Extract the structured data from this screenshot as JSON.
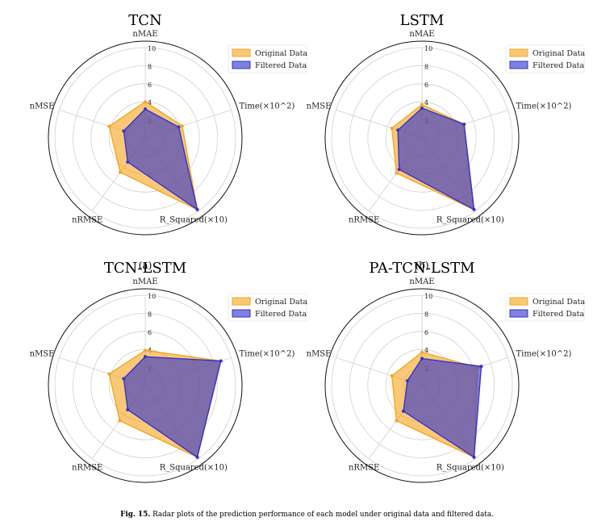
{
  "chart_data": [
    {
      "type": "radar",
      "title": "TCN",
      "label": "(a)",
      "axes": [
        "nMAE",
        "Time(×10^2)",
        "R_Squared(×10)",
        "nRMSE",
        "nMSE"
      ],
      "rticks": [
        "2",
        "4",
        "6",
        "8",
        "10"
      ],
      "rmax": 10,
      "series": [
        {
          "name": "Original Data",
          "color": "#f5a623",
          "values": [
            4.0,
            4.3,
            9.8,
            4.7,
            4.2
          ]
        },
        {
          "name": "Filtered Data",
          "color": "#3333cc",
          "values": [
            3.2,
            3.9,
            9.8,
            3.3,
            2.5
          ]
        }
      ]
    },
    {
      "type": "radar",
      "title": "LSTM",
      "label": "(b)",
      "axes": [
        "nMAE",
        "Time(×10^2)",
        "R_Squared(×10)",
        "nRMSE",
        "nMSE"
      ],
      "rticks": [
        "2",
        "4",
        "6",
        "8",
        "10"
      ],
      "rmax": 10,
      "series": [
        {
          "name": "Original Data",
          "color": "#f5a623",
          "values": [
            3.7,
            4.9,
            9.8,
            4.8,
            3.5
          ]
        },
        {
          "name": "Filtered Data",
          "color": "#3333cc",
          "values": [
            3.3,
            4.9,
            9.8,
            4.3,
            2.8
          ]
        }
      ]
    },
    {
      "type": "radar",
      "title": "TCN-LSTM",
      "label": "(c)",
      "axes": [
        "nMAE",
        "Time(×10^2)",
        "R_Squared(×10)",
        "nRMSE",
        "nMSE"
      ],
      "rticks": [
        "2",
        "4",
        "6",
        "8",
        "10"
      ],
      "rmax": 10,
      "series": [
        {
          "name": "Original Data",
          "color": "#f5a623",
          "values": [
            3.9,
            8.8,
            9.8,
            4.8,
            4.2
          ]
        },
        {
          "name": "Filtered Data",
          "color": "#3333cc",
          "values": [
            3.2,
            8.8,
            9.8,
            3.3,
            2.5
          ]
        }
      ]
    },
    {
      "type": "radar",
      "title": "PA-TCN-LSTM",
      "label": "(d)",
      "axes": [
        "nMAE",
        "Time(×10^2)",
        "R_Squared(×10)",
        "nRMSE",
        "nMSE"
      ],
      "rticks": [
        "2",
        "4",
        "6",
        "8",
        "10"
      ],
      "rmax": 10,
      "series": [
        {
          "name": "Original Data",
          "color": "#f5a623",
          "values": [
            3.7,
            6.5,
            9.8,
            4.8,
            3.5
          ]
        },
        {
          "name": "Filtered Data",
          "color": "#3333cc",
          "values": [
            3.0,
            6.9,
            9.8,
            3.5,
            1.7
          ]
        }
      ]
    }
  ],
  "caption": {
    "prefix": "Fig. 15.",
    "text": " Radar plots of the prediction performance of each model under original data and filtered data."
  }
}
